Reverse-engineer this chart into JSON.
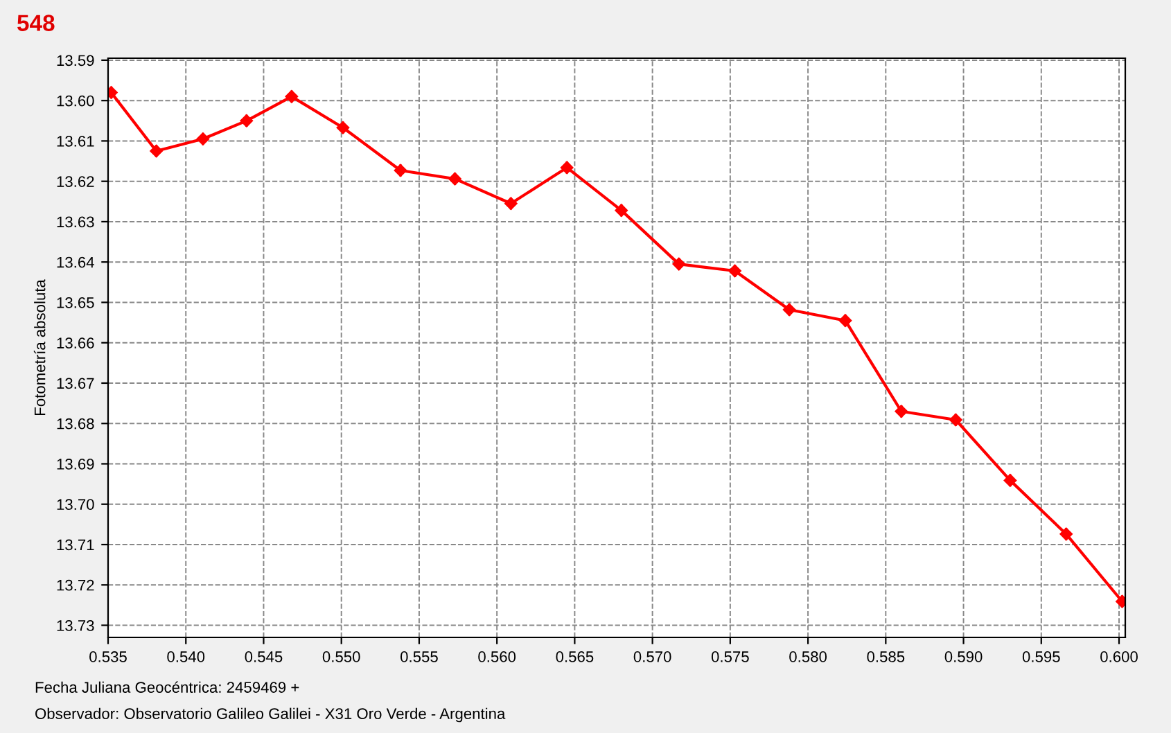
{
  "chart_data": {
    "type": "line",
    "title": "548",
    "ylabel": "Fotometría absoluta",
    "xlabel": "Fecha Juliana Geocéntrica: 2459469 +",
    "annotations": [
      "Observador: Observatorio Galileo Galilei - X31 Oro Verde - Argentina"
    ],
    "series": [
      {
        "color": "#ff0000",
        "x": [
          0.5352,
          0.5381,
          0.5411,
          0.5439,
          0.5468,
          0.5501,
          0.5538,
          0.5573,
          0.5609,
          0.5645,
          0.568,
          0.5717,
          0.5753,
          0.5788,
          0.5824,
          0.586,
          0.5895,
          0.593,
          0.5966,
          0.6002
        ],
        "values": [
          13.598,
          13.6125,
          13.6095,
          13.605,
          13.599,
          13.6067,
          13.6173,
          13.6194,
          13.6255,
          13.6166,
          13.6272,
          13.6405,
          13.6422,
          13.6518,
          13.6545,
          13.677,
          13.6791,
          13.6941,
          13.7074,
          13.7241
        ],
        "errors": [
          0.0015,
          0.0015,
          0.0015,
          0.0015,
          0.0015,
          0.0015,
          0.0015,
          0.0015,
          0.0015,
          0.0015,
          0.0015,
          0.0015,
          0.0015,
          0.0015,
          0.0015,
          0.0015,
          0.0015,
          0.0015,
          0.0015,
          0.0015
        ]
      }
    ],
    "xlim": [
      0.535,
      0.6004
    ],
    "xticks": [
      {
        "value": 0.535,
        "label": "0.535"
      },
      {
        "value": 0.54,
        "label": "0.540"
      },
      {
        "value": 0.545,
        "label": "0.545"
      },
      {
        "value": 0.55,
        "label": "0.550"
      },
      {
        "value": 0.555,
        "label": "0.555"
      },
      {
        "value": 0.56,
        "label": "0.560"
      },
      {
        "value": 0.565,
        "label": "0.565"
      },
      {
        "value": 0.57,
        "label": "0.570"
      },
      {
        "value": 0.575,
        "label": "0.575"
      },
      {
        "value": 0.58,
        "label": "0.580"
      },
      {
        "value": 0.585,
        "label": "0.585"
      },
      {
        "value": 0.59,
        "label": "0.590"
      },
      {
        "value": 0.595,
        "label": "0.595"
      },
      {
        "value": 0.6,
        "label": "0.600"
      }
    ],
    "ylim": [
      13.733,
      13.5895
    ],
    "yticks": [
      13.59,
      {
        "value": 13.6,
        "label": "13.60"
      },
      13.61,
      13.62,
      13.63,
      13.64,
      13.65,
      13.66,
      13.67,
      13.68,
      13.69,
      {
        "value": 13.7,
        "label": "13.70"
      },
      13.71,
      13.72,
      13.73
    ],
    "grid": true,
    "marker": "diamond",
    "line_style": "solid"
  }
}
